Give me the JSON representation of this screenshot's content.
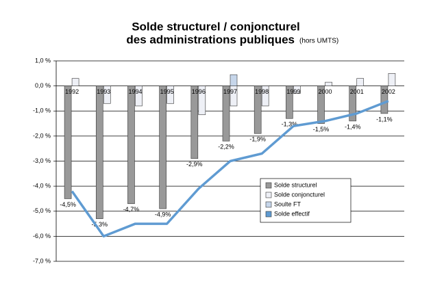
{
  "chart_data": {
    "type": "bar",
    "title": [
      "Solde structurel / conjoncturel",
      "des administrations publiques"
    ],
    "subtitle": "(hors UMTS)",
    "categories": [
      "1992",
      "1993",
      "1994",
      "1995",
      "1996",
      "1997",
      "1998",
      "1999",
      "2000",
      "2001",
      "2002"
    ],
    "series": [
      {
        "name": "Solde structurel",
        "type": "bar",
        "color": "#999999",
        "values": [
          -4.5,
          -5.3,
          -4.7,
          -4.9,
          -2.9,
          -2.2,
          -1.9,
          -1.3,
          -1.5,
          -1.4,
          -1.1
        ],
        "value_labels": [
          "-4,5%",
          "-5,3%",
          "-4,7%",
          "-4,9%",
          "-2,9%",
          "-2,2%",
          "-1,9%",
          "-1,3%",
          "-1,5%",
          "-1,4%",
          "-1,1%"
        ]
      },
      {
        "name": "Solde conjoncturel",
        "type": "bar",
        "color": "#eef0f6",
        "values": [
          0.3,
          -0.7,
          -0.8,
          -0.7,
          -1.15,
          -0.8,
          -0.8,
          -0.3,
          0.15,
          0.3,
          0.5
        ]
      },
      {
        "name": "Soulte FT",
        "type": "bar",
        "color": "#c6d6ea",
        "values": [
          null,
          null,
          null,
          null,
          null,
          0.45,
          null,
          null,
          null,
          null,
          null
        ]
      },
      {
        "name": "Solde effectif",
        "type": "line",
        "color": "#5f9bd2",
        "values": [
          -4.2,
          -6.0,
          -5.5,
          -5.5,
          -4.1,
          -3.0,
          -2.7,
          -1.6,
          -1.4,
          -1.1,
          -0.6
        ]
      }
    ],
    "ylim": [
      -7,
      1
    ],
    "yticks": [
      {
        "value": 1,
        "label": "1,0 %"
      },
      {
        "value": 0,
        "label": "0,0 %"
      },
      {
        "value": -1,
        "label": "-1,0 %"
      },
      {
        "value": -2,
        "label": "-2,0 %"
      },
      {
        "value": -3,
        "label": "-3,0 %"
      },
      {
        "value": -4,
        "label": "-4,0 %"
      },
      {
        "value": -5,
        "label": "-5,0 %"
      },
      {
        "value": -6,
        "label": "-6,0 %"
      },
      {
        "value": -7,
        "label": "-7,0 %"
      }
    ],
    "grid": true
  }
}
